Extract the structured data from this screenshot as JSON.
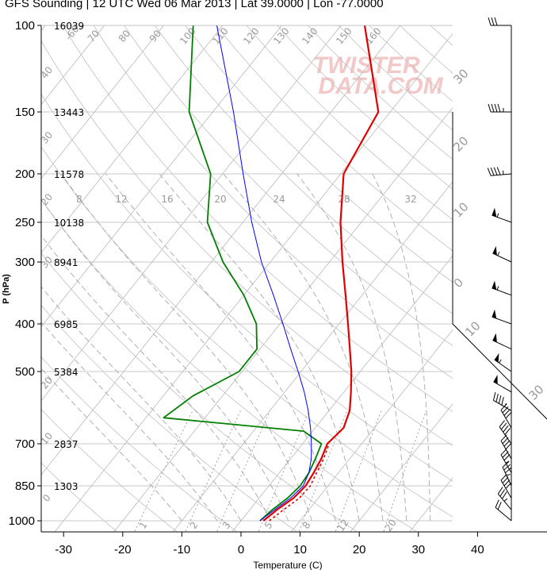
{
  "title": "GFS Sounding | 12 UTC Wed 06 Mar 2013 | Lat 39.0000 | Lon -77.0000",
  "watermark": [
    "TWISTER",
    "DATA.COM"
  ],
  "colors": {
    "temperature": "#e00000",
    "dewpoint": "#008000",
    "parcel": "#0000ff",
    "isobar": "#b8b8b8",
    "isotherm": "#b8b8b8",
    "dry_adiabat": "#c0c0c0",
    "moist_adiabat": "#a8a8a8",
    "mixing_ratio": "#9a9a9a",
    "axis": "#000000"
  },
  "chart_data": {
    "type": "line",
    "subtype": "skew-T log-p",
    "xlabel": "Temperature (C)",
    "ylabel": "P (hPa)",
    "x_ticks": [
      -30,
      -20,
      -10,
      0,
      10,
      20,
      30,
      40
    ],
    "xlim": [
      -34,
      46
    ],
    "y_ticks": [
      100,
      150,
      200,
      250,
      300,
      400,
      500,
      700,
      850,
      1000
    ],
    "ylim": [
      100,
      1000
    ],
    "yscale": "log",
    "heights_m": [
      {
        "p": 100,
        "z": "16039"
      },
      {
        "p": 150,
        "z": "13443"
      },
      {
        "p": 200,
        "z": "11578"
      },
      {
        "p": 250,
        "z": "10138"
      },
      {
        "p": 300,
        "z": "8941"
      },
      {
        "p": 400,
        "z": "6985"
      },
      {
        "p": 500,
        "z": "5384"
      },
      {
        "p": 700,
        "z": "2837"
      },
      {
        "p": 850,
        "z": "1303"
      }
    ],
    "mixing_ratio_labels": [
      "8",
      "12",
      "16",
      "20",
      "24",
      "28",
      "32"
    ],
    "dry_adiabat_labels": [
      "-60",
      "70",
      "80",
      "90",
      "100",
      "110",
      "120",
      "130",
      "140",
      "150",
      "160",
      "40",
      "30",
      "20",
      "10",
      "0"
    ],
    "lower_axis_labels": [
      "1",
      "2",
      "3",
      "5",
      "8",
      "12",
      "20"
    ],
    "hodo_labels": [
      "30",
      "20",
      "10",
      "0",
      "10",
      "30"
    ],
    "series": [
      {
        "name": "Temperature",
        "points": [
          [
            1000,
            3.8
          ],
          [
            950,
            4.6
          ],
          [
            900,
            5.8
          ],
          [
            850,
            6.2
          ],
          [
            800,
            5.8
          ],
          [
            750,
            5.2
          ],
          [
            700,
            4.2
          ],
          [
            650,
            4.8
          ],
          [
            600,
            3.5
          ],
          [
            550,
            1.2
          ],
          [
            500,
            -1.5
          ],
          [
            450,
            -4.8
          ],
          [
            400,
            -8.5
          ],
          [
            350,
            -12.8
          ],
          [
            300,
            -17.8
          ],
          [
            250,
            -23.5
          ],
          [
            200,
            -29.5
          ],
          [
            150,
            -32.0
          ],
          [
            100,
            -46.0
          ]
        ]
      },
      {
        "name": "Dewpoint",
        "points": [
          [
            1000,
            3.2
          ],
          [
            950,
            3.8
          ],
          [
            900,
            4.8
          ],
          [
            850,
            5.3
          ],
          [
            800,
            5.0
          ],
          [
            750,
            4.2
          ],
          [
            700,
            3.2
          ],
          [
            660,
            -1.5
          ],
          [
            620,
            -27.0
          ],
          [
            560,
            -25.0
          ],
          [
            500,
            -20.5
          ],
          [
            450,
            -20.5
          ],
          [
            400,
            -24.0
          ],
          [
            350,
            -30.0
          ],
          [
            300,
            -38.0
          ],
          [
            250,
            -46.0
          ],
          [
            200,
            -52.0
          ],
          [
            150,
            -64.0
          ],
          [
            100,
            -75.0
          ]
        ]
      },
      {
        "name": "Parcel",
        "points": [
          [
            1000,
            3.2
          ],
          [
            950,
            4.2
          ],
          [
            900,
            5.3
          ],
          [
            850,
            5.8
          ],
          [
            800,
            5.0
          ],
          [
            750,
            3.5
          ],
          [
            700,
            1.5
          ],
          [
            650,
            -0.8
          ],
          [
            600,
            -3.5
          ],
          [
            550,
            -6.7
          ],
          [
            500,
            -10.5
          ],
          [
            450,
            -14.8
          ],
          [
            400,
            -19.5
          ],
          [
            350,
            -25.0
          ],
          [
            300,
            -31.5
          ],
          [
            250,
            -38.5
          ],
          [
            200,
            -46.5
          ],
          [
            150,
            -56.5
          ],
          [
            100,
            -71.0
          ]
        ]
      },
      {
        "name": "Virtual temperature",
        "points": [
          [
            1000,
            4.8
          ],
          [
            950,
            5.7
          ],
          [
            900,
            6.8
          ],
          [
            850,
            7.0
          ],
          [
            800,
            6.3
          ],
          [
            750,
            5.6
          ],
          [
            700,
            4.5
          ]
        ]
      }
    ],
    "wind_barbs": [
      {
        "p": 100,
        "dir": 270,
        "spd": 30
      },
      {
        "p": 150,
        "dir": 270,
        "spd": 45
      },
      {
        "p": 200,
        "dir": 265,
        "spd": 45
      },
      {
        "p": 250,
        "dir": 290,
        "spd": 55
      },
      {
        "p": 300,
        "dir": 295,
        "spd": 55
      },
      {
        "p": 350,
        "dir": 290,
        "spd": 55
      },
      {
        "p": 400,
        "dir": 290,
        "spd": 50
      },
      {
        "p": 450,
        "dir": 295,
        "spd": 50
      },
      {
        "p": 500,
        "dir": 305,
        "spd": 55
      },
      {
        "p": 550,
        "dir": 300,
        "spd": 50
      },
      {
        "p": 600,
        "dir": 300,
        "spd": 45
      },
      {
        "p": 650,
        "dir": 330,
        "spd": 40
      },
      {
        "p": 700,
        "dir": 325,
        "spd": 40
      },
      {
        "p": 750,
        "dir": 330,
        "spd": 40
      },
      {
        "p": 800,
        "dir": 330,
        "spd": 35
      },
      {
        "p": 850,
        "dir": 335,
        "spd": 35
      },
      {
        "p": 900,
        "dir": 330,
        "spd": 40
      },
      {
        "p": 950,
        "dir": 320,
        "spd": 35
      },
      {
        "p": 1000,
        "dir": 310,
        "spd": 20
      }
    ]
  }
}
